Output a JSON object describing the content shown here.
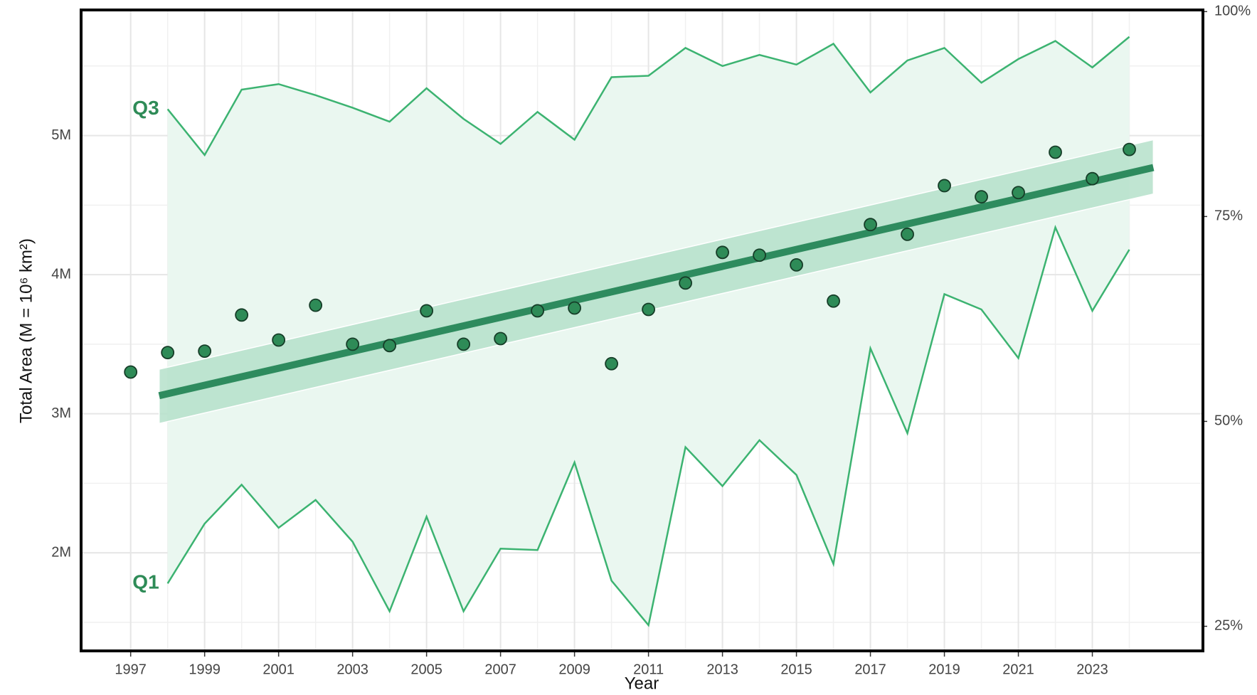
{
  "chart_data": {
    "type": "line",
    "ylabel": "Total Area (M = 10⁶ km²)",
    "xlabel": "Year",
    "xlim": [
      1995.66,
      2025.99
    ],
    "xticks": [
      1997,
      1999,
      2001,
      2003,
      2005,
      2007,
      2009,
      2011,
      2013,
      2015,
      2017,
      2019,
      2021,
      2023
    ],
    "ylim": [
      1.295,
      5.903
    ],
    "yticks": [
      {
        "value": 2,
        "label": "2M"
      },
      {
        "value": 3,
        "label": "3M"
      },
      {
        "value": 4,
        "label": "4M"
      },
      {
        "value": 5,
        "label": "5M"
      }
    ],
    "y2lim": [
      22.0,
      100.2
    ],
    "y2ticks": [
      {
        "value": 25,
        "label": "25%"
      },
      {
        "value": 50,
        "label": "50%"
      },
      {
        "value": 75,
        "label": "75%"
      },
      {
        "value": 100,
        "label": "100%"
      }
    ],
    "grid": true,
    "band_color": "#eaf7f0",
    "series": [
      {
        "name": "Q3",
        "color": "#3cb371",
        "x": [
          1998,
          1999,
          2000,
          2001,
          2002,
          2003,
          2004,
          2005,
          2006,
          2007,
          2008,
          2009,
          2010,
          2011,
          2012,
          2013,
          2014,
          2015,
          2016,
          2017,
          2018,
          2019,
          2020,
          2021,
          2022,
          2023,
          2024
        ],
        "values": [
          5.19,
          4.86,
          5.33,
          5.37,
          5.29,
          5.2,
          5.1,
          5.34,
          5.12,
          4.94,
          5.17,
          4.97,
          5.42,
          5.43,
          5.63,
          5.5,
          5.58,
          5.51,
          5.66,
          5.31,
          5.54,
          5.63,
          5.38,
          5.55,
          5.68,
          5.49,
          5.71
        ]
      },
      {
        "name": "Q1",
        "color": "#3cb371",
        "x": [
          1998,
          1999,
          2000,
          2001,
          2002,
          2003,
          2004,
          2005,
          2006,
          2007,
          2008,
          2009,
          2010,
          2011,
          2012,
          2013,
          2014,
          2015,
          2016,
          2017,
          2018,
          2019,
          2020,
          2021,
          2022,
          2023,
          2024
        ],
        "values": [
          1.78,
          2.21,
          2.49,
          2.18,
          2.38,
          2.08,
          1.58,
          2.26,
          1.58,
          2.03,
          2.02,
          2.65,
          1.8,
          1.48,
          2.76,
          2.48,
          2.81,
          2.56,
          1.92,
          3.47,
          2.86,
          3.86,
          3.75,
          3.4,
          4.34,
          3.74,
          4.18
        ]
      }
    ],
    "points": {
      "color": "#2e8b57",
      "x": [
        1997,
        1998,
        1999,
        2000,
        2001,
        2002,
        2003,
        2004,
        2005,
        2006,
        2007,
        2008,
        2009,
        2010,
        2011,
        2012,
        2013,
        2014,
        2015,
        2016,
        2017,
        2018,
        2019,
        2020,
        2021,
        2022,
        2023,
        2024
      ],
      "values": [
        3.3,
        3.44,
        3.45,
        3.71,
        3.53,
        3.78,
        3.5,
        3.49,
        3.74,
        3.5,
        3.54,
        3.74,
        3.76,
        3.36,
        3.75,
        3.94,
        4.16,
        4.14,
        4.07,
        3.81,
        4.36,
        4.29,
        4.64,
        4.56,
        4.59,
        4.88,
        4.69,
        4.9
      ]
    },
    "trend": {
      "color": "#2e8b5e",
      "ci_color": "#b5e0ca",
      "x": [
        1997.77,
        2024.65
      ],
      "values": [
        3.13,
        4.77
      ],
      "lower": [
        2.93,
        4.58
      ],
      "upper": [
        3.32,
        4.97
      ]
    }
  }
}
